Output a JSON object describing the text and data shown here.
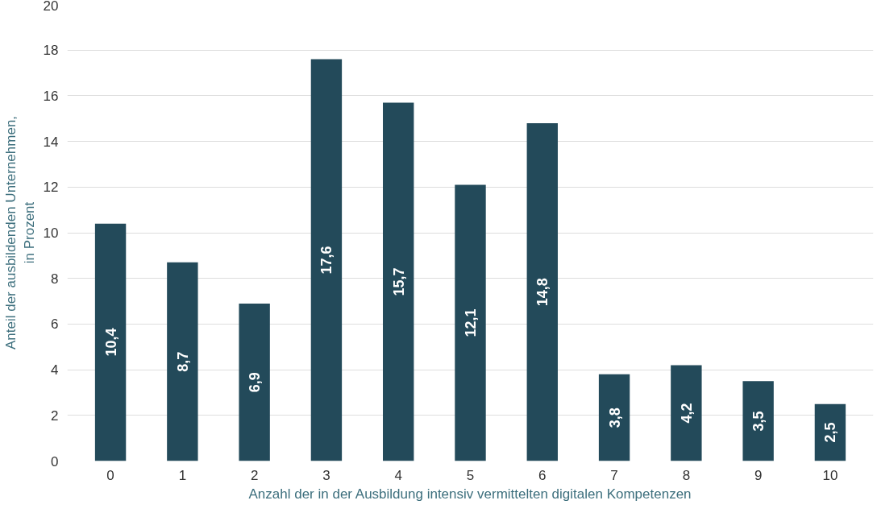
{
  "chart_data": {
    "type": "bar",
    "xlabel": "Anzahl der in der Ausbildung intensiv vermittelten digitalen Kompetenzen",
    "ylabel": "Anteil der ausbildenden Unternehmen,\nin Prozent",
    "categories": [
      "0",
      "1",
      "2",
      "3",
      "4",
      "5",
      "6",
      "7",
      "8",
      "9",
      "10"
    ],
    "values": [
      10.4,
      8.7,
      6.9,
      17.6,
      15.7,
      12.1,
      14.8,
      3.8,
      4.2,
      3.5,
      2.5
    ],
    "value_labels": [
      "10,4",
      "8,7",
      "6,9",
      "17,6",
      "15,7",
      "12,1",
      "14,8",
      "3,8",
      "4,2",
      "3,5",
      "2,5"
    ],
    "color": "#234a5a",
    "ylim": [
      0,
      20
    ],
    "yticks": [
      0,
      2,
      4,
      6,
      8,
      10,
      12,
      14,
      16,
      18,
      20
    ],
    "grid": "y"
  }
}
